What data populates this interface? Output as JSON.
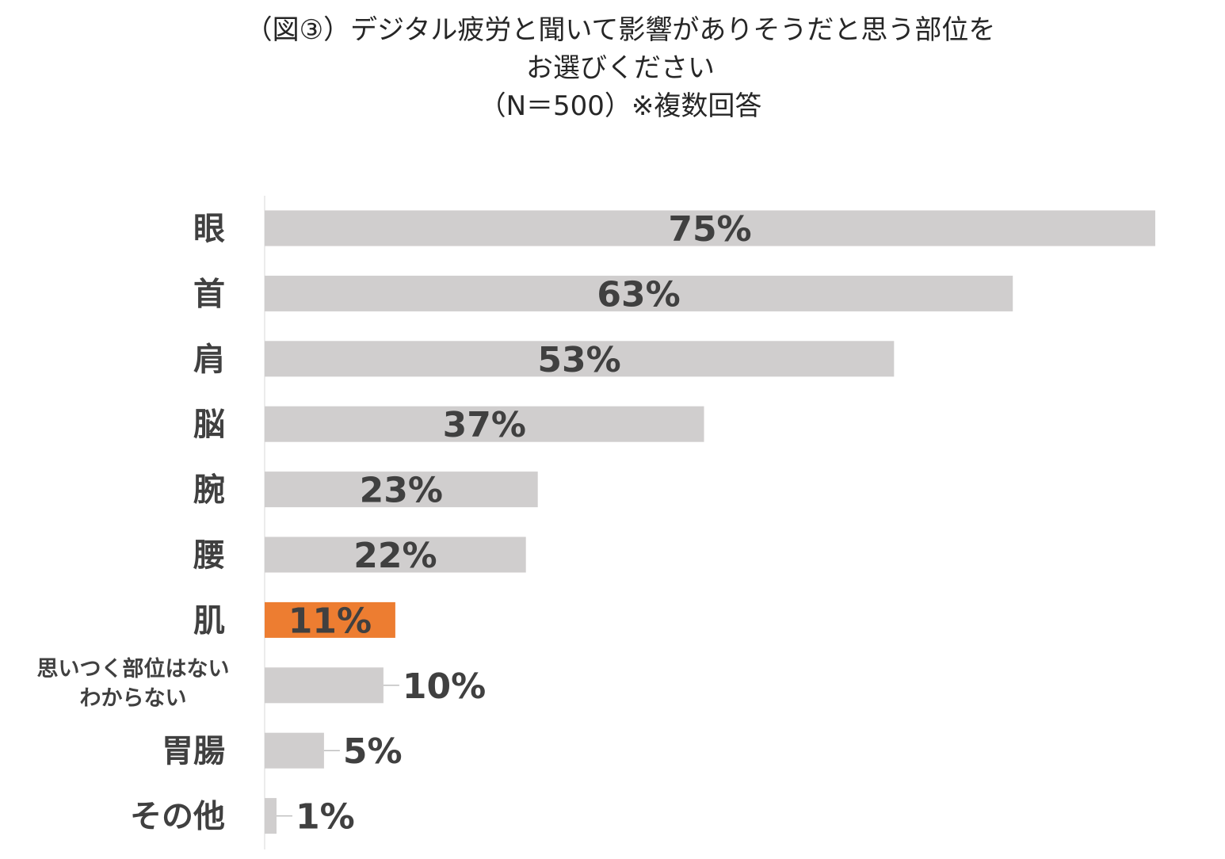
{
  "chart_data": {
    "type": "bar",
    "orientation": "horizontal",
    "title_lines": [
      "（図③）デジタル疲労と聞いて影響がありそうだと思う部位を",
      "お選びください",
      "（N＝500）※複数回答"
    ],
    "categories": [
      [
        "眼"
      ],
      [
        "首"
      ],
      [
        "肩"
      ],
      [
        "脳"
      ],
      [
        "腕"
      ],
      [
        "腰"
      ],
      [
        "肌"
      ],
      [
        "思いつく部位はない",
        "わからない"
      ],
      [
        "胃腸"
      ],
      [
        "その他"
      ]
    ],
    "values": [
      75,
      63,
      53,
      37,
      23,
      22,
      11,
      10,
      5,
      1
    ],
    "value_labels": [
      "75%",
      "63%",
      "53%",
      "37%",
      "23%",
      "22%",
      "11%",
      "10%",
      "5%",
      "1%"
    ],
    "highlight_index": 6,
    "colors": {
      "bar": "#d0cece",
      "highlight": "#ed7d31",
      "axis": "#d9d9d9",
      "leader": "#bfbfbf",
      "text": "#404040"
    },
    "xlim": [
      0,
      75
    ],
    "grid": false,
    "legend": "none"
  }
}
